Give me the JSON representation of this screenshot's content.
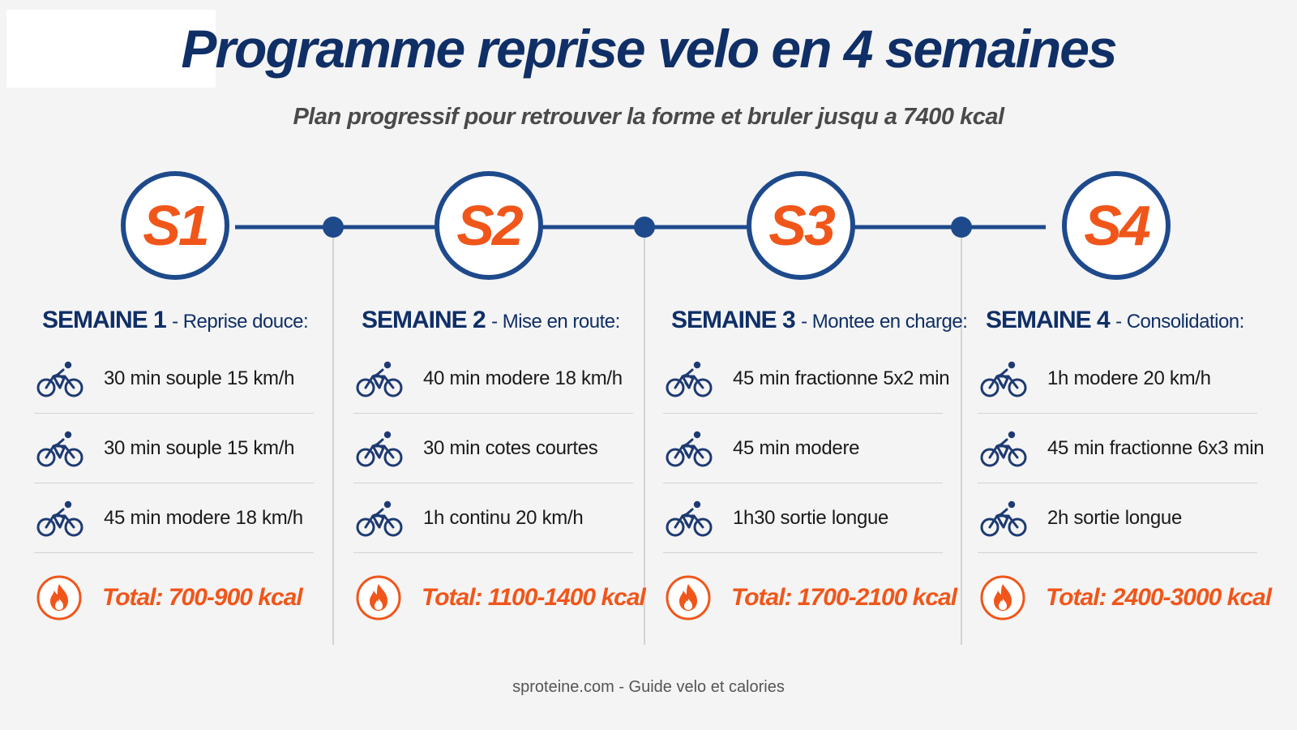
{
  "title": "Programme reprise velo en 4 semaines",
  "subtitle": "Plan progressif pour retrouver la forme et bruler jusqu a 7400 kcal",
  "colors": {
    "navy": "#0f2f66",
    "line": "#1e4a8c",
    "orange": "#f0561a",
    "background": "#f4f4f4"
  },
  "weeks": [
    {
      "badge": "S1",
      "label": "SEMAINE 1",
      "subtitle": "- Reprise douce:",
      "sessions": [
        {
          "icon": "bicycle-icon",
          "text": "30 min souple 15 km/h"
        },
        {
          "icon": "bicycle-icon",
          "text": "30 min souple 15 km/h"
        },
        {
          "icon": "bicycle-icon",
          "text": "45 min modere 18 km/h"
        }
      ],
      "total": "Total: 700-900 kcal"
    },
    {
      "badge": "S2",
      "label": "SEMAINE 2",
      "subtitle": "- Mise en route:",
      "sessions": [
        {
          "icon": "bicycle-icon",
          "text": "40 min modere 18 km/h"
        },
        {
          "icon": "bicycle-icon",
          "text": "30 min cotes courtes"
        },
        {
          "icon": "bicycle-icon",
          "text": "1h continu 20 km/h"
        }
      ],
      "total": "Total: 1100-1400 kcal"
    },
    {
      "badge": "S3",
      "label": "SEMAINE 3",
      "subtitle": "- Montee en charge:",
      "sessions": [
        {
          "icon": "bicycle-icon",
          "text": "45 min fractionne 5x2 min"
        },
        {
          "icon": "bicycle-icon",
          "text": "45 min modere"
        },
        {
          "icon": "bicycle-icon",
          "text": "1h30 sortie longue"
        }
      ],
      "total": "Total: 1700-2100 kcal"
    },
    {
      "badge": "S4",
      "label": "SEMAINE 4",
      "subtitle": "- Consolidation:",
      "sessions": [
        {
          "icon": "bicycle-icon",
          "text": "1h modere 20 km/h"
        },
        {
          "icon": "bicycle-icon",
          "text": "45 min fractionne 6x3 min"
        },
        {
          "icon": "bicycle-icon",
          "text": "2h sortie longue"
        }
      ],
      "total": "Total: 2400-3000 kcal"
    }
  ],
  "footer": "sproteine.com - Guide velo et calories"
}
